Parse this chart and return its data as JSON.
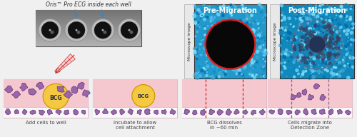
{
  "bg_color": "#f0f0f0",
  "title_text": "Oris™ Pro ECG inside each well",
  "panel_labels": [
    "Pre-Migration",
    "Post-Migration"
  ],
  "step_labels": [
    "Add cells to well",
    "Incubate to allow\ncell attachment",
    "BCG dissolves\nin ~60 min",
    "Cells migrate into\nDetection Zone"
  ],
  "microscope_label": "Microscope image",
  "cell_color_fill": "#9966aa",
  "cell_color_edge": "#663377",
  "bcg_color": "#f5c842",
  "bcg_edge": "#cc9900",
  "bcg_text_color": "#333333",
  "pink_bg": "#f5c8d0",
  "white_bg": "#ffffff",
  "box_bg": "#fce8ec",
  "border_color": "#ddcccc",
  "dashed_red": "#cc2222",
  "dashed_purple": "#886688",
  "label_color": "#336699",
  "text_color": "#444444",
  "pre_img_bg": "#2299cc",
  "post_img_bg": "#1188bb",
  "well_plate_bg": "#999999",
  "well_dark": "#111111",
  "well_ring": "#777777"
}
